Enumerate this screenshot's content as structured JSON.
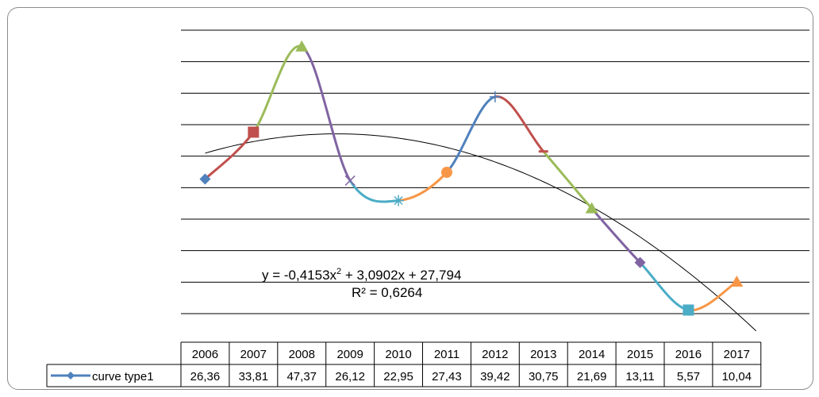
{
  "chart_data": {
    "type": "line",
    "categories": [
      "2006",
      "2007",
      "2008",
      "2009",
      "2010",
      "2011",
      "2012",
      "2013",
      "2014",
      "2015",
      "2016",
      "2017"
    ],
    "series": [
      {
        "name": "curve type1",
        "values_display": [
          "26,36",
          "33,81",
          "47,37",
          "26,12",
          "22,95",
          "27,43",
          "39,42",
          "30,75",
          "21,69",
          "13,11",
          "5,57",
          "10,04"
        ],
        "values": [
          26.36,
          33.81,
          47.37,
          26.12,
          22.95,
          27.43,
          39.42,
          30.75,
          21.69,
          13.11,
          5.57,
          10.04
        ]
      }
    ],
    "trendline": {
      "type": "polynomial",
      "order": 2,
      "a": -0.4153,
      "b": 3.0902,
      "c": 27.794,
      "equation_prefix": "y = -0,4153x",
      "equation_exp": "2",
      "equation_suffix": " + 3,0902x + 27,794",
      "r2_label": "R² = 0,6264"
    },
    "ylim": [
      5,
      50
    ],
    "gridlines": [
      5,
      10,
      15,
      20,
      25,
      30,
      35,
      40,
      45,
      50
    ],
    "segment_colors": [
      "#4f81bd",
      "#c0504d",
      "#9bbb59",
      "#8064a2",
      "#4bacc6",
      "#f79646",
      "#4f81bd",
      "#c0504d",
      "#9bbb59",
      "#8064a2",
      "#4bacc6",
      "#f79646"
    ],
    "markers": [
      "diamond",
      "square",
      "triangle",
      "x",
      "star",
      "circle",
      "plus",
      "dash",
      "triangle",
      "diamond",
      "square",
      "triangle"
    ],
    "legend_key_color": "#4f81bd",
    "axis_color": "#000000",
    "grid_color": "#000000"
  }
}
